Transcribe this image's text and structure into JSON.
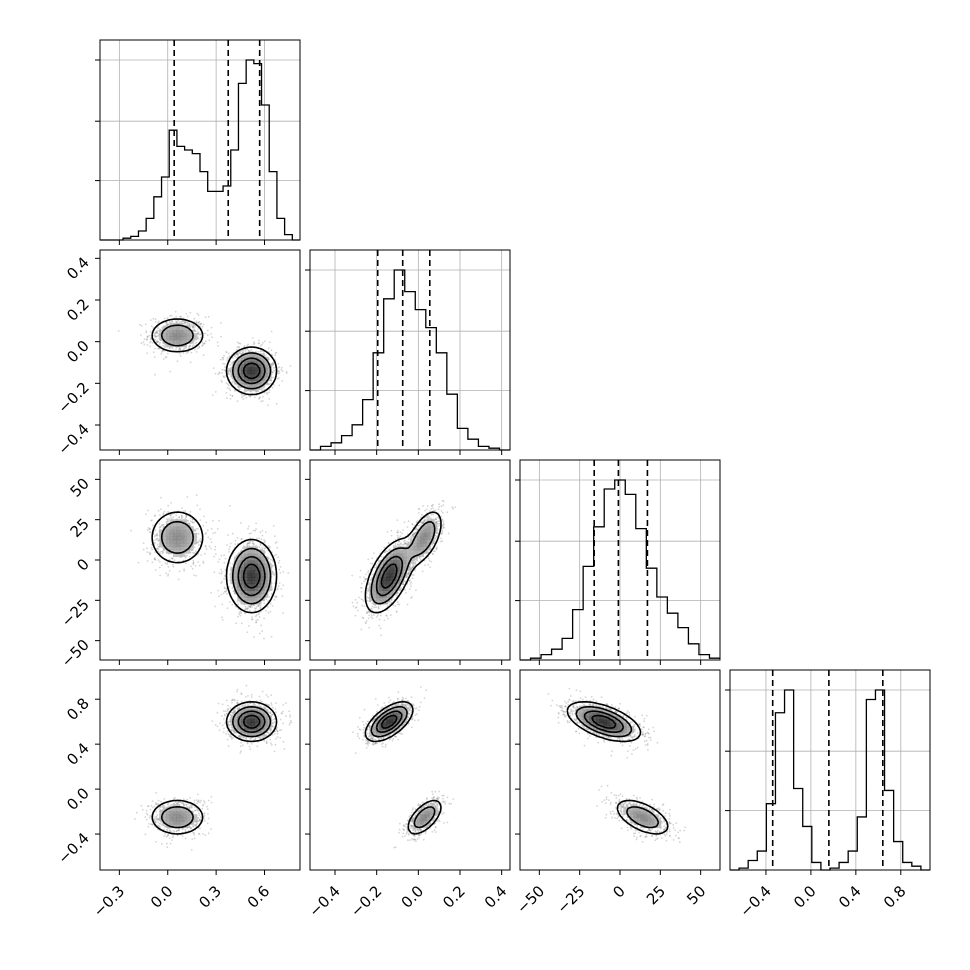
{
  "chart_data": {
    "type": "corner",
    "title": "",
    "grid": true,
    "n_params": 4,
    "params": [
      {
        "range": [
          -0.42,
          0.82
        ],
        "ticks": [
          -0.3,
          0.0,
          0.3,
          0.6
        ],
        "tick_labels": [
          "−0.3",
          "0.0",
          "0.3",
          "0.6"
        ],
        "quantiles": [
          0.04,
          0.375,
          0.57
        ]
      },
      {
        "range": [
          -0.52,
          0.44
        ],
        "ticks": [
          -0.4,
          -0.2,
          0.0,
          0.2,
          0.4
        ],
        "tick_labels": [
          "−0.4",
          "−0.2",
          "0.0",
          "0.2",
          "0.4"
        ],
        "quantiles": [
          -0.195,
          -0.075,
          0.055
        ]
      },
      {
        "range": [
          -62,
          62
        ],
        "ticks": [
          -50,
          -25,
          0,
          25,
          50
        ],
        "tick_labels": [
          "−50",
          "−25",
          "0",
          "25",
          "50"
        ],
        "quantiles": [
          -16,
          -1,
          17
        ]
      },
      {
        "range": [
          -0.72,
          1.06
        ],
        "ticks": [
          -0.4,
          0.0,
          0.4,
          0.8
        ],
        "tick_labels": [
          "−0.4",
          "0.0",
          "0.4",
          "0.8"
        ],
        "quantiles": [
          -0.34,
          0.16,
          0.64
        ]
      }
    ],
    "histograms": [
      {
        "edges_range": [
          -0.42,
          0.82
        ],
        "counts": [
          0,
          0,
          0,
          1,
          2,
          5,
          12,
          24,
          35,
          61,
          52,
          50,
          48,
          38,
          27,
          27,
          30,
          50,
          87,
          100,
          98,
          75,
          38,
          12,
          3,
          0
        ]
      },
      {
        "edges_range": [
          -0.52,
          0.44
        ],
        "counts": [
          0,
          2,
          4,
          8,
          14,
          28,
          54,
          84,
          100,
          88,
          78,
          68,
          54,
          31,
          12,
          6,
          2,
          1,
          0
        ]
      },
      {
        "edges_range": [
          -62,
          62
        ],
        "counts": [
          0,
          1,
          3,
          6,
          12,
          28,
          52,
          74,
          95,
          100,
          92,
          73,
          51,
          35,
          26,
          18,
          9,
          3,
          1
        ]
      },
      {
        "edges_range": [
          -0.72,
          1.06
        ],
        "counts": [
          0,
          1,
          5,
          10,
          35,
          83,
          95,
          43,
          23,
          4,
          0,
          1,
          4,
          10,
          28,
          90,
          95,
          42,
          15,
          4,
          2,
          0
        ]
      }
    ],
    "distribution": {
      "mode_fractions": [
        0.35,
        0.65
      ],
      "modes": [
        {
          "mean": [
            0.06,
            0.03,
            14,
            -0.25
          ],
          "std": [
            0.09,
            0.045,
            9,
            0.085
          ]
        },
        {
          "mean": [
            0.52,
            -0.14,
            -10,
            0.6
          ],
          "std": [
            0.075,
            0.055,
            11,
            0.085
          ]
        }
      ],
      "pair_correlation": {
        "1-2": 0.55,
        "1-3": 0.6,
        "2-3": -0.55
      }
    }
  }
}
